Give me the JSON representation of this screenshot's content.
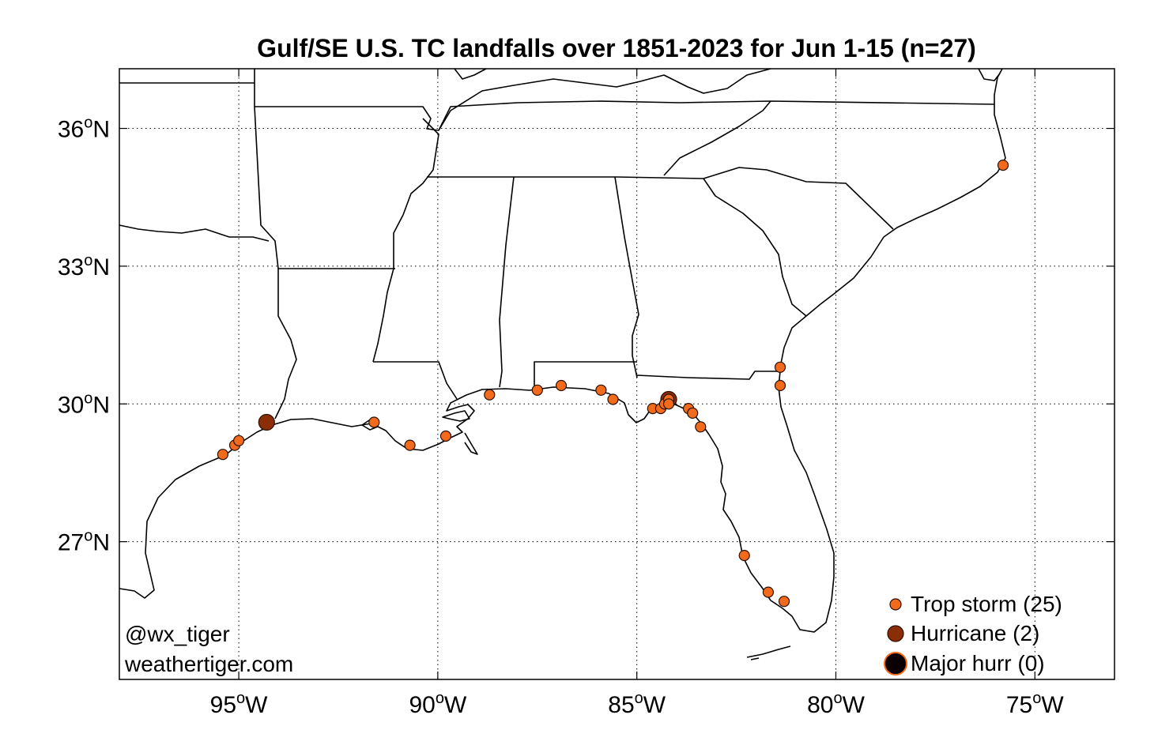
{
  "title": "Gulf/SE U.S. TC landfalls over 1851-2023 for Jun 1-15 (n=27)",
  "credit": {
    "handle": "@wx_tiger",
    "site": "weathertiger.com"
  },
  "axes": {
    "lon_range": [
      -98,
      -73
    ],
    "lat_range": [
      24.0,
      37.3
    ],
    "lon_ticks": [
      {
        "value": -95,
        "label": "95",
        "deg": "o",
        "hemi": "W"
      },
      {
        "value": -90,
        "label": "90",
        "deg": "o",
        "hemi": "W"
      },
      {
        "value": -85,
        "label": "85",
        "deg": "o",
        "hemi": "W"
      },
      {
        "value": -80,
        "label": "80",
        "deg": "o",
        "hemi": "W"
      },
      {
        "value": -75,
        "label": "75",
        "deg": "o",
        "hemi": "W"
      }
    ],
    "lat_ticks": [
      {
        "value": 27,
        "label": "27",
        "deg": "o",
        "hemi": "N"
      },
      {
        "value": 30,
        "label": "30",
        "deg": "o",
        "hemi": "N"
      },
      {
        "value": 33,
        "label": "33",
        "deg": "o",
        "hemi": "N"
      },
      {
        "value": 36,
        "label": "36",
        "deg": "o",
        "hemi": "N"
      }
    ],
    "grid": "dotted"
  },
  "legend": {
    "placement": "bottom-right",
    "items": [
      {
        "label": "Trop storm (25)",
        "category": "ts"
      },
      {
        "label": "Hurricane (2)",
        "category": "hu"
      },
      {
        "label": "Major hurr (0)",
        "category": "mh"
      }
    ]
  },
  "colors": {
    "ts_fill": "#f26b1d",
    "hu_fill": "#8b2e08",
    "mh_fill": "#0a0000",
    "mh_edge": "#f26b1d",
    "marker_edge": "#2a1000",
    "map_lines": "#000000",
    "grid": "#000000"
  },
  "chart_data": {
    "type": "scatter",
    "x_label_unit": "longitude",
    "y_label_unit": "latitude",
    "series": [
      {
        "category": "ts",
        "points": [
          [
            -95.4,
            28.9
          ],
          [
            -95.1,
            29.1
          ],
          [
            -95.0,
            29.2
          ],
          [
            -91.6,
            29.6
          ],
          [
            -90.7,
            29.1
          ],
          [
            -89.8,
            29.3
          ],
          [
            -88.7,
            30.2
          ],
          [
            -87.5,
            30.3
          ],
          [
            -86.9,
            30.4
          ],
          [
            -85.9,
            30.3
          ],
          [
            -85.6,
            30.1
          ],
          [
            -84.6,
            29.9
          ],
          [
            -84.4,
            29.9
          ],
          [
            -84.3,
            30.0
          ],
          [
            -84.2,
            30.1
          ],
          [
            -83.7,
            29.9
          ],
          [
            -83.6,
            29.8
          ],
          [
            -83.4,
            29.5
          ],
          [
            -82.3,
            26.7
          ],
          [
            -81.7,
            25.9
          ],
          [
            -81.3,
            25.7
          ],
          [
            -81.4,
            30.4
          ],
          [
            -81.4,
            30.8
          ],
          [
            -75.8,
            35.2
          ],
          [
            -84.2,
            30.0
          ]
        ]
      },
      {
        "category": "hu",
        "points": [
          [
            -94.3,
            29.6
          ],
          [
            -84.2,
            30.1
          ]
        ]
      },
      {
        "category": "mh",
        "points": []
      }
    ]
  }
}
